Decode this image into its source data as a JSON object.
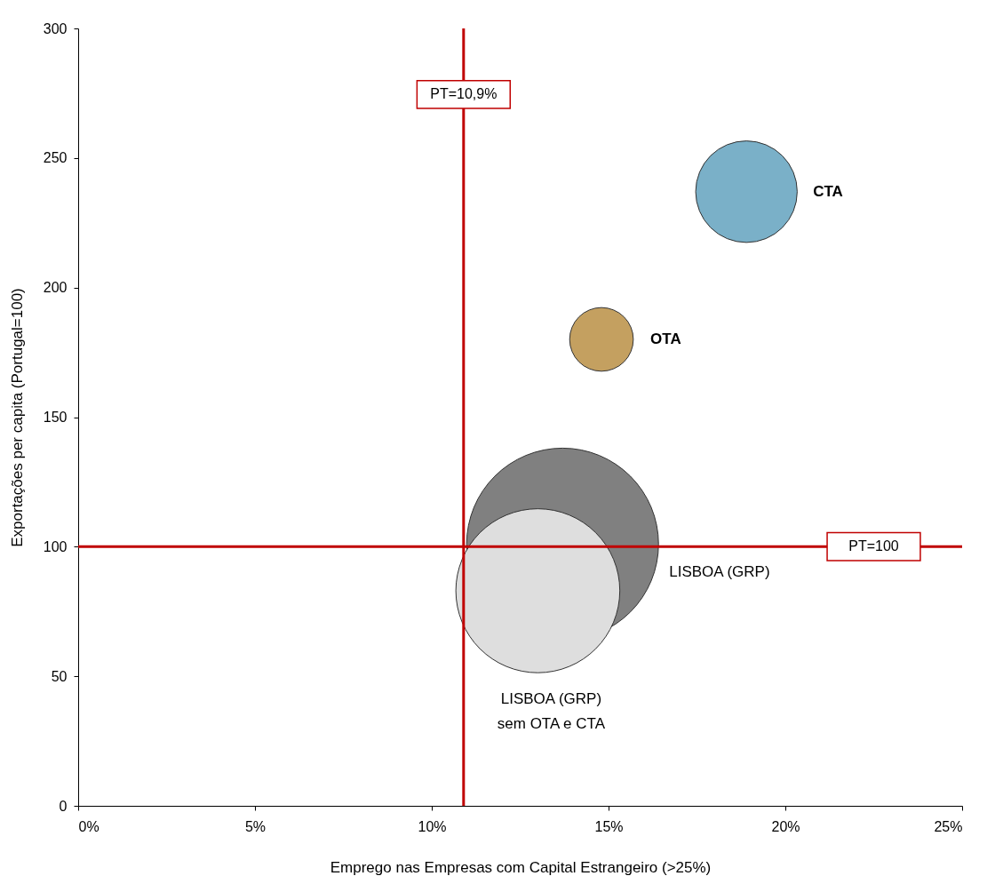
{
  "chart_data": {
    "type": "bubble",
    "xlabel": "Emprego nas Empresas com Capital Estrangeiro (>25%)",
    "ylabel": "Exportações per capita (Portugal=100)",
    "xlim": [
      0,
      25
    ],
    "xticks": [
      {
        "value": 0,
        "label": "0%"
      },
      {
        "value": 5,
        "label": "5%"
      },
      {
        "value": 10,
        "label": "10%"
      },
      {
        "value": 15,
        "label": "15%"
      },
      {
        "value": 20,
        "label": "20%"
      },
      {
        "value": 25,
        "label": "25%"
      }
    ],
    "ylim": [
      0,
      300
    ],
    "yticks": [
      0,
      50,
      100,
      150,
      200,
      250,
      300
    ],
    "grid": false,
    "series": [
      {
        "name": "CTA",
        "color": "#7ab0c8",
        "x": [
          18.9
        ],
        "values": [
          237
        ],
        "sizes": [
          0.28
        ]
      },
      {
        "name": "OTA",
        "color": "#c4a060",
        "x": [
          14.8
        ],
        "values": [
          180
        ],
        "sizes": [
          0.11
        ]
      },
      {
        "name": "LISBOA (GRP)",
        "color": "#808080",
        "x": [
          13.7
        ],
        "values": [
          101
        ],
        "sizes": [
          1
        ]
      },
      {
        "name": "LISBOA (GRP)\nsem OTA e CTA",
        "color": "#dedede",
        "x": [
          13.0
        ],
        "values": [
          83
        ],
        "sizes": [
          0.73
        ]
      }
    ],
    "ref_lines": [
      {
        "axis": "x",
        "value": 10.9,
        "label": "PT=10,9%",
        "color": "#c00000"
      },
      {
        "axis": "y",
        "value": 100,
        "label": "PT=100",
        "color": "#c00000"
      }
    ]
  }
}
